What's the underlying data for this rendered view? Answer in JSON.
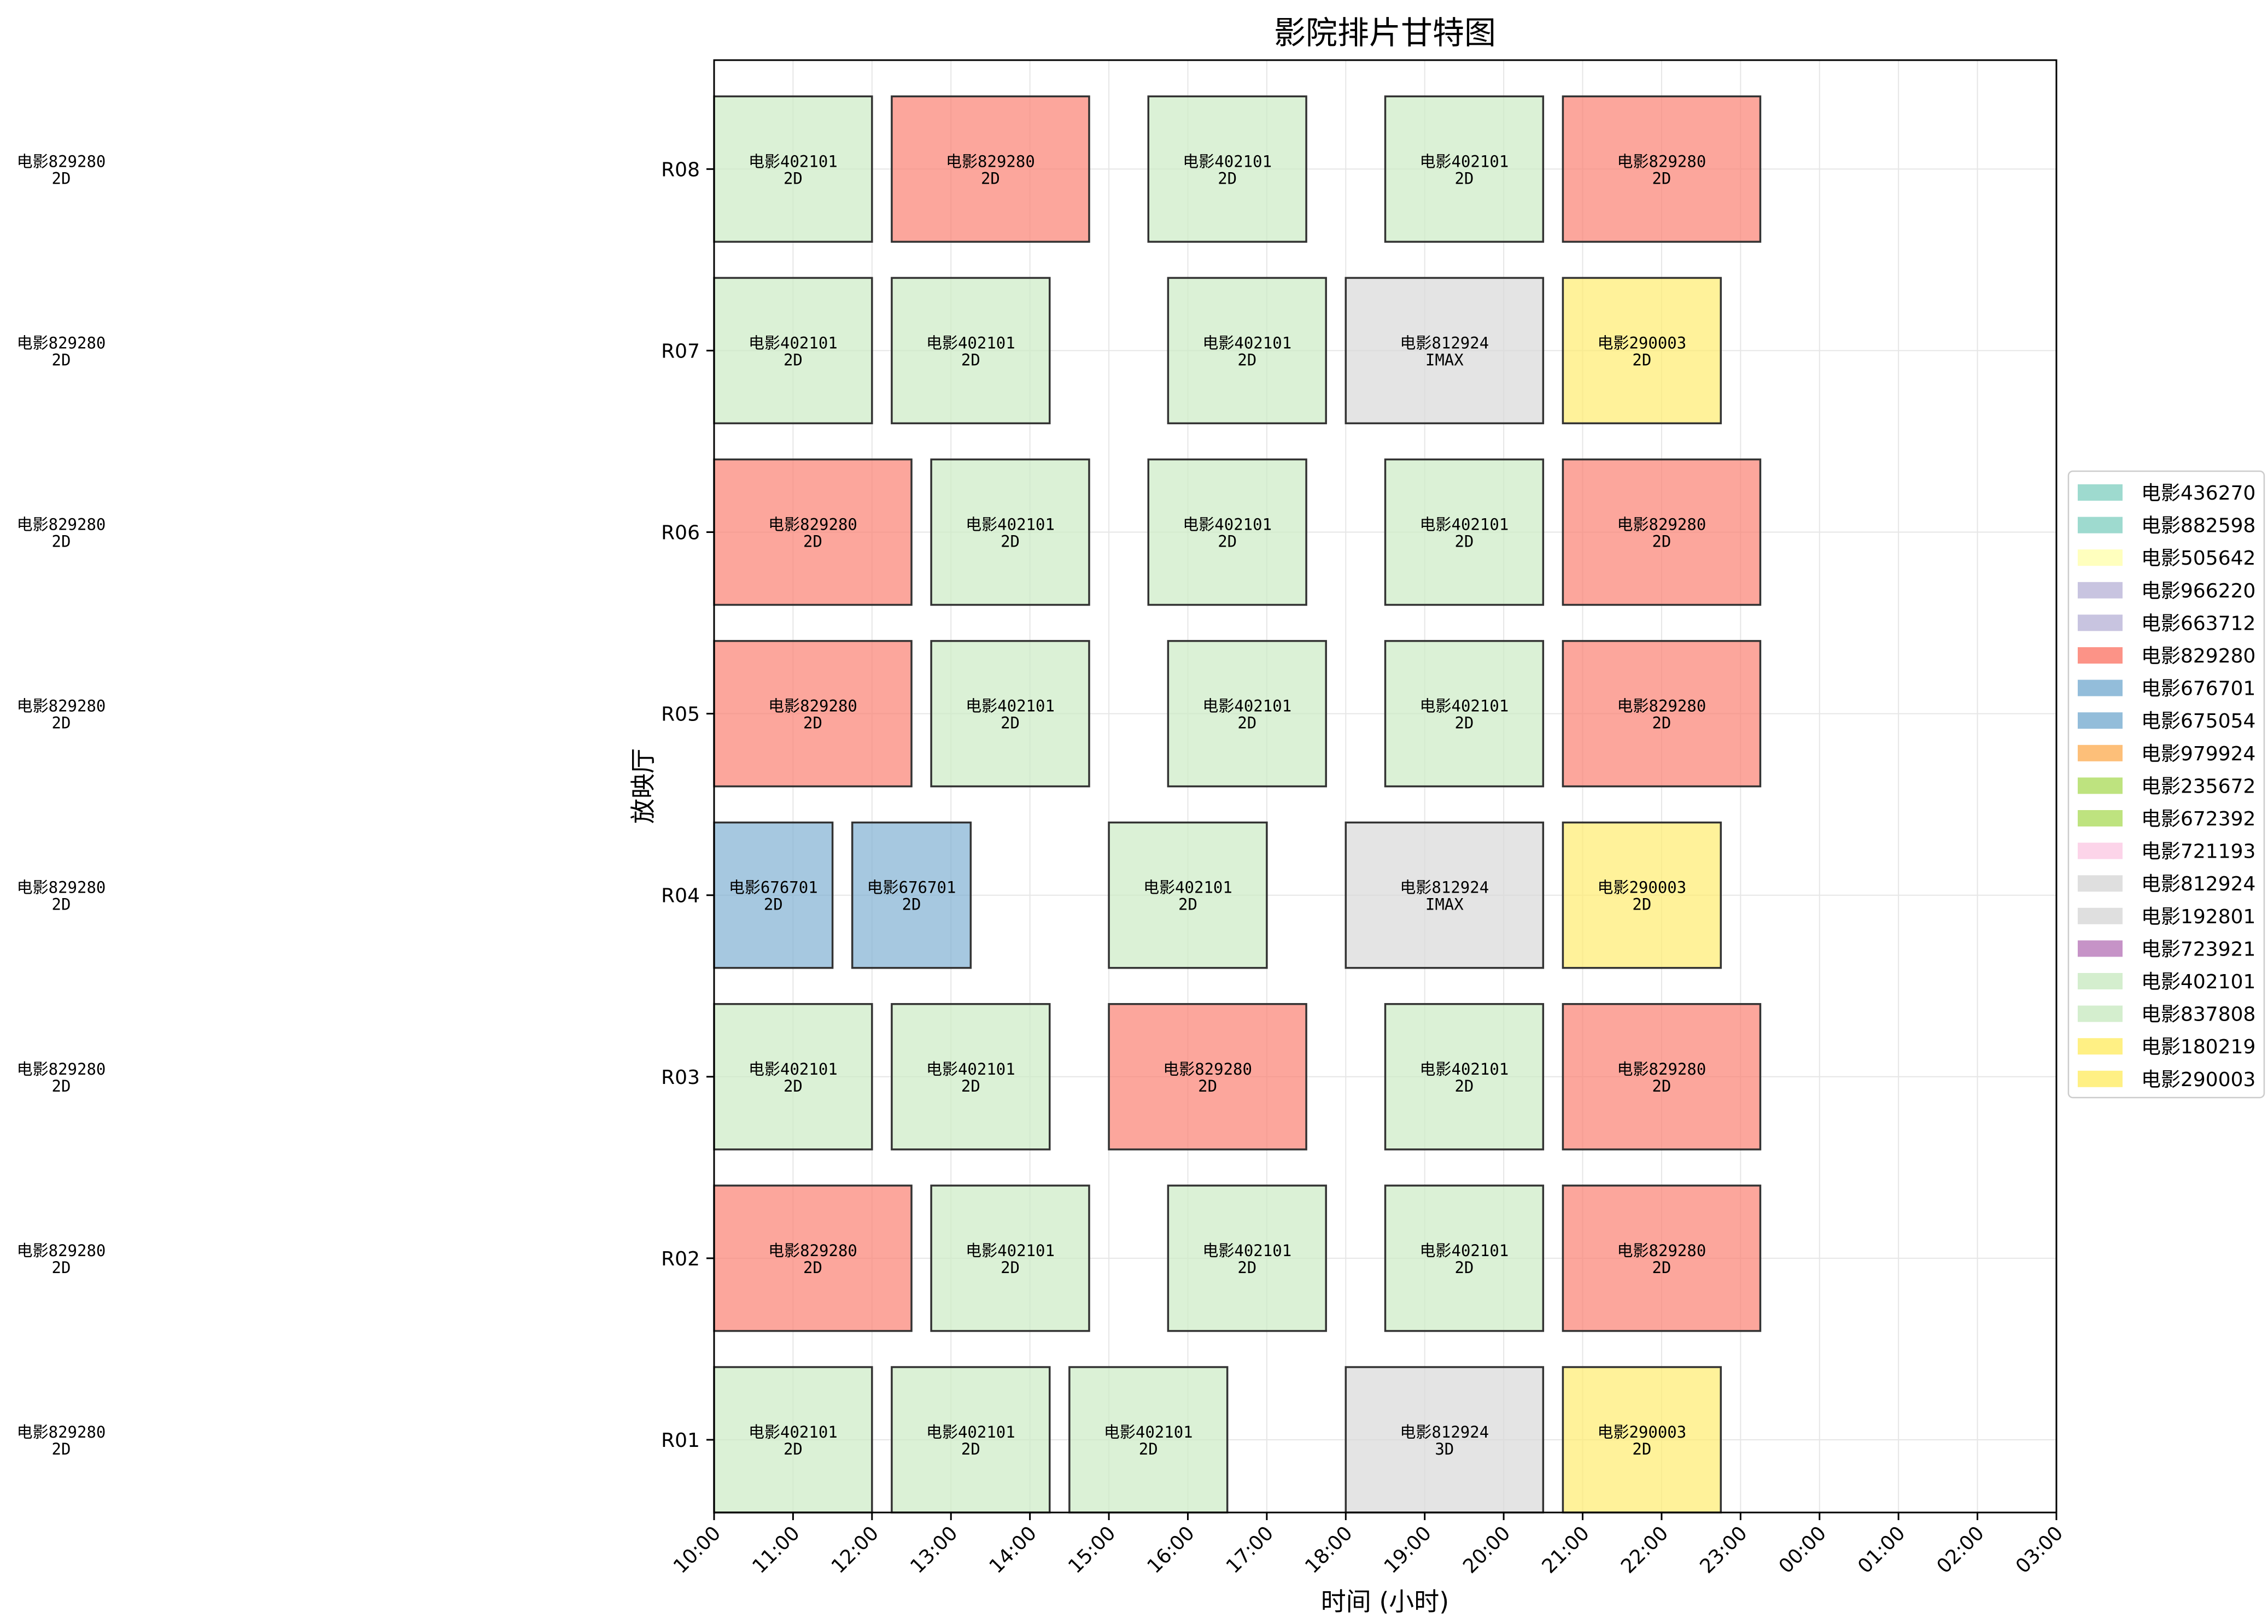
{
  "chart_data": {
    "type": "gantt",
    "title": "影院排片甘特图",
    "xlabel": "时间 (小时)",
    "ylabel": "放映厅",
    "x_ticks": [
      "10:00",
      "11:00",
      "12:00",
      "13:00",
      "14:00",
      "15:00",
      "16:00",
      "17:00",
      "18:00",
      "19:00",
      "20:00",
      "21:00",
      "22:00",
      "23:00",
      "00:00",
      "01:00",
      "02:00",
      "03:00"
    ],
    "xlim": [
      10,
      27
    ],
    "halls": [
      "R01",
      "R02",
      "R03",
      "R04",
      "R05",
      "R06",
      "R07",
      "R08"
    ],
    "grid": true,
    "legend_position": "right-center",
    "legend": [
      {
        "label": "电影436270",
        "color": "#8dd3c7"
      },
      {
        "label": "电影882598",
        "color": "#8dd3c7"
      },
      {
        "label": "电影505642",
        "color": "#ffffb3"
      },
      {
        "label": "电影966220",
        "color": "#bebada"
      },
      {
        "label": "电影663712",
        "color": "#bebada"
      },
      {
        "label": "电影829280",
        "color": "#fb8072"
      },
      {
        "label": "电影676701",
        "color": "#80b1d3"
      },
      {
        "label": "电影675054",
        "color": "#80b1d3"
      },
      {
        "label": "电影979924",
        "color": "#fdb462"
      },
      {
        "label": "电影235672",
        "color": "#b3de69"
      },
      {
        "label": "电影672392",
        "color": "#b3de69"
      },
      {
        "label": "电影721193",
        "color": "#fccde5"
      },
      {
        "label": "电影812924",
        "color": "#d9d9d9"
      },
      {
        "label": "电影192801",
        "color": "#d9d9d9"
      },
      {
        "label": "电影723921",
        "color": "#bc80bd"
      },
      {
        "label": "电影402101",
        "color": "#ccebc5"
      },
      {
        "label": "电影837808",
        "color": "#ccebc5"
      },
      {
        "label": "电影180219",
        "color": "#ffed6f"
      },
      {
        "label": "电影290003",
        "color": "#ffed6f"
      }
    ],
    "sessions": [
      {
        "hall": "R01",
        "start": 10.0,
        "end": 12.0,
        "movie": "电影402101",
        "format": "2D"
      },
      {
        "hall": "R01",
        "start": 12.25,
        "end": 14.25,
        "movie": "电影402101",
        "format": "2D"
      },
      {
        "hall": "R01",
        "start": 14.5,
        "end": 16.5,
        "movie": "电影402101",
        "format": "2D"
      },
      {
        "hall": "R01",
        "start": 18.0,
        "end": 20.5,
        "movie": "电影812924",
        "format": "3D"
      },
      {
        "hall": "R01",
        "start": 20.75,
        "end": 22.75,
        "movie": "电影290003",
        "format": "2D"
      },
      {
        "hall": "R02",
        "start": 10.0,
        "end": 12.5,
        "movie": "电影829280",
        "format": "2D"
      },
      {
        "hall": "R02",
        "start": 12.75,
        "end": 14.75,
        "movie": "电影402101",
        "format": "2D"
      },
      {
        "hall": "R02",
        "start": 15.75,
        "end": 17.75,
        "movie": "电影402101",
        "format": "2D"
      },
      {
        "hall": "R02",
        "start": 18.5,
        "end": 20.5,
        "movie": "电影402101",
        "format": "2D"
      },
      {
        "hall": "R02",
        "start": 20.75,
        "end": 23.25,
        "movie": "电影829280",
        "format": "2D"
      },
      {
        "hall": "R03",
        "start": 10.0,
        "end": 12.0,
        "movie": "电影402101",
        "format": "2D"
      },
      {
        "hall": "R03",
        "start": 12.25,
        "end": 14.25,
        "movie": "电影402101",
        "format": "2D"
      },
      {
        "hall": "R03",
        "start": 15.0,
        "end": 17.5,
        "movie": "电影829280",
        "format": "2D"
      },
      {
        "hall": "R03",
        "start": 18.5,
        "end": 20.5,
        "movie": "电影402101",
        "format": "2D"
      },
      {
        "hall": "R03",
        "start": 20.75,
        "end": 23.25,
        "movie": "电影829280",
        "format": "2D"
      },
      {
        "hall": "R04",
        "start": 10.0,
        "end": 11.5,
        "movie": "电影676701",
        "format": "2D"
      },
      {
        "hall": "R04",
        "start": 11.75,
        "end": 13.25,
        "movie": "电影676701",
        "format": "2D"
      },
      {
        "hall": "R04",
        "start": 15.0,
        "end": 17.0,
        "movie": "电影402101",
        "format": "2D"
      },
      {
        "hall": "R04",
        "start": 18.0,
        "end": 20.5,
        "movie": "电影812924",
        "format": "IMAX"
      },
      {
        "hall": "R04",
        "start": 20.75,
        "end": 22.75,
        "movie": "电影290003",
        "format": "2D"
      },
      {
        "hall": "R05",
        "start": 10.0,
        "end": 12.5,
        "movie": "电影829280",
        "format": "2D"
      },
      {
        "hall": "R05",
        "start": 12.75,
        "end": 14.75,
        "movie": "电影402101",
        "format": "2D"
      },
      {
        "hall": "R05",
        "start": 15.75,
        "end": 17.75,
        "movie": "电影402101",
        "format": "2D"
      },
      {
        "hall": "R05",
        "start": 18.5,
        "end": 20.5,
        "movie": "电影402101",
        "format": "2D"
      },
      {
        "hall": "R05",
        "start": 20.75,
        "end": 23.25,
        "movie": "电影829280",
        "format": "2D"
      },
      {
        "hall": "R06",
        "start": 10.0,
        "end": 12.5,
        "movie": "电影829280",
        "format": "2D"
      },
      {
        "hall": "R06",
        "start": 12.75,
        "end": 14.75,
        "movie": "电影402101",
        "format": "2D"
      },
      {
        "hall": "R06",
        "start": 15.5,
        "end": 17.5,
        "movie": "电影402101",
        "format": "2D"
      },
      {
        "hall": "R06",
        "start": 18.5,
        "end": 20.5,
        "movie": "电影402101",
        "format": "2D"
      },
      {
        "hall": "R06",
        "start": 20.75,
        "end": 23.25,
        "movie": "电影829280",
        "format": "2D"
      },
      {
        "hall": "R07",
        "start": 10.0,
        "end": 12.0,
        "movie": "电影402101",
        "format": "2D"
      },
      {
        "hall": "R07",
        "start": 12.25,
        "end": 14.25,
        "movie": "电影402101",
        "format": "2D"
      },
      {
        "hall": "R07",
        "start": 15.75,
        "end": 17.75,
        "movie": "电影402101",
        "format": "2D"
      },
      {
        "hall": "R07",
        "start": 18.0,
        "end": 20.5,
        "movie": "电影812924",
        "format": "IMAX"
      },
      {
        "hall": "R07",
        "start": 20.75,
        "end": 22.75,
        "movie": "电影290003",
        "format": "2D"
      },
      {
        "hall": "R08",
        "start": 10.0,
        "end": 12.0,
        "movie": "电影402101",
        "format": "2D"
      },
      {
        "hall": "R08",
        "start": 12.25,
        "end": 14.75,
        "movie": "电影829280",
        "format": "2D"
      },
      {
        "hall": "R08",
        "start": 15.5,
        "end": 17.5,
        "movie": "电影402101",
        "format": "2D"
      },
      {
        "hall": "R08",
        "start": 18.5,
        "end": 20.5,
        "movie": "电影402101",
        "format": "2D"
      },
      {
        "hall": "R08",
        "start": 20.75,
        "end": 23.25,
        "movie": "电影829280",
        "format": "2D"
      }
    ],
    "offchart_labels": [
      {
        "hall": "R01",
        "movie": "电影829280",
        "format": "2D"
      },
      {
        "hall": "R02",
        "movie": "电影829280",
        "format": "2D"
      },
      {
        "hall": "R03",
        "movie": "电影829280",
        "format": "2D"
      },
      {
        "hall": "R04",
        "movie": "电影829280",
        "format": "2D"
      },
      {
        "hall": "R05",
        "movie": "电影829280",
        "format": "2D"
      },
      {
        "hall": "R06",
        "movie": "电影829280",
        "format": "2D"
      },
      {
        "hall": "R07",
        "movie": "电影829280",
        "format": "2D"
      },
      {
        "hall": "R08",
        "movie": "电影829280",
        "format": "2D"
      }
    ]
  }
}
